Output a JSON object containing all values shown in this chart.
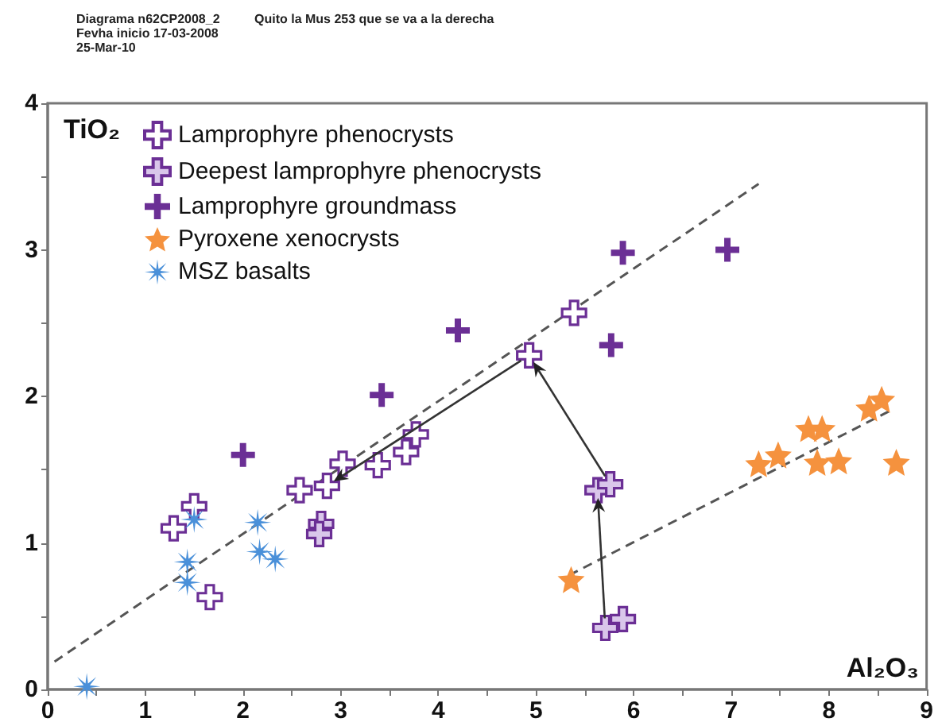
{
  "chart_data": {
    "type": "scatter",
    "annotations": [
      "Diagrama n62CP2008_2",
      "Fevha inicio 17-03-2008",
      "25-Mar-10",
      "Quito la Mus 253 que se va a la derecha"
    ],
    "xlabel": "Al₂O₃",
    "ylabel": "TiO₂",
    "xlim": [
      0,
      9
    ],
    "ylim": [
      0,
      4
    ],
    "xticks": [
      0,
      {
        "value": 0.5,
        "label": null
      },
      1,
      {
        "value": 1.5,
        "label": null
      },
      2,
      {
        "value": 2.5,
        "label": null
      },
      3,
      {
        "value": 3.5,
        "label": null
      },
      4,
      {
        "value": 4.5,
        "label": null
      },
      5,
      {
        "value": 5.5,
        "label": null
      },
      6,
      {
        "value": 6.5,
        "label": null
      },
      7,
      {
        "value": 7.5,
        "label": null
      },
      8,
      {
        "value": 8.5,
        "label": null
      },
      9
    ],
    "yticks": [
      0,
      {
        "value": 0.5,
        "label": null
      },
      1,
      {
        "value": 1.5,
        "label": null
      },
      2,
      {
        "value": 2.5,
        "label": null
      },
      3,
      {
        "value": 3.5,
        "label": null
      },
      4
    ],
    "grid": false,
    "legend": "top left",
    "series": [
      {
        "name": "Lamprophyre phenocrysts",
        "color": "#6b2f95",
        "marker": "cross",
        "x": [
          1.29,
          1.5,
          1.66,
          2.58,
          2.86,
          3.02,
          3.38,
          3.67,
          3.77,
          4.93,
          5.39
        ],
        "values": [
          1.1,
          1.25,
          0.63,
          1.36,
          1.39,
          1.54,
          1.53,
          1.62,
          1.74,
          2.28,
          2.57
        ]
      },
      {
        "name": "Deepest lamprophyre phenocrysts",
        "color": "#6b2f95",
        "marker": "cross",
        "x": [
          2.8,
          2.78,
          5.63,
          5.76,
          5.71,
          5.89
        ],
        "values": [
          1.13,
          1.06,
          1.36,
          1.4,
          0.42,
          0.48
        ]
      },
      {
        "name": "Lamprophyre groundmass",
        "color": "#6b2f95",
        "marker": "cross",
        "x": [
          2.0,
          3.42,
          4.2,
          5.89,
          5.77,
          6.96
        ],
        "values": [
          1.6,
          2.01,
          2.45,
          2.98,
          2.35,
          3.0
        ]
      },
      {
        "name": "Pyroxene xenocrysts",
        "color": "#f5923e",
        "marker": "star",
        "x": [
          5.36,
          7.28,
          7.48,
          7.79,
          7.93,
          7.88,
          8.1,
          8.41,
          8.54,
          8.69
        ],
        "values": [
          0.75,
          1.54,
          1.6,
          1.78,
          1.78,
          1.55,
          1.56,
          1.92,
          1.98,
          1.55
        ]
      },
      {
        "name": "MSZ basalts",
        "color": "#4a90d9",
        "marker": "star",
        "x": [
          0.4,
          1.5,
          1.43,
          1.43,
          2.15,
          2.17,
          2.33
        ],
        "values": [
          0.02,
          1.16,
          0.87,
          0.73,
          1.14,
          0.94,
          0.89
        ]
      },
      {
        "type": "line",
        "color": "#555555",
        "line_style": "dashed",
        "marker": "none",
        "x": [
          0.07,
          7.28
        ],
        "values": [
          0.19,
          3.45
        ]
      },
      {
        "type": "line",
        "color": "#555555",
        "line_style": "dashed",
        "marker": "none",
        "x": [
          5.34,
          8.62
        ],
        "values": [
          0.78,
          1.9
        ]
      }
    ]
  }
}
